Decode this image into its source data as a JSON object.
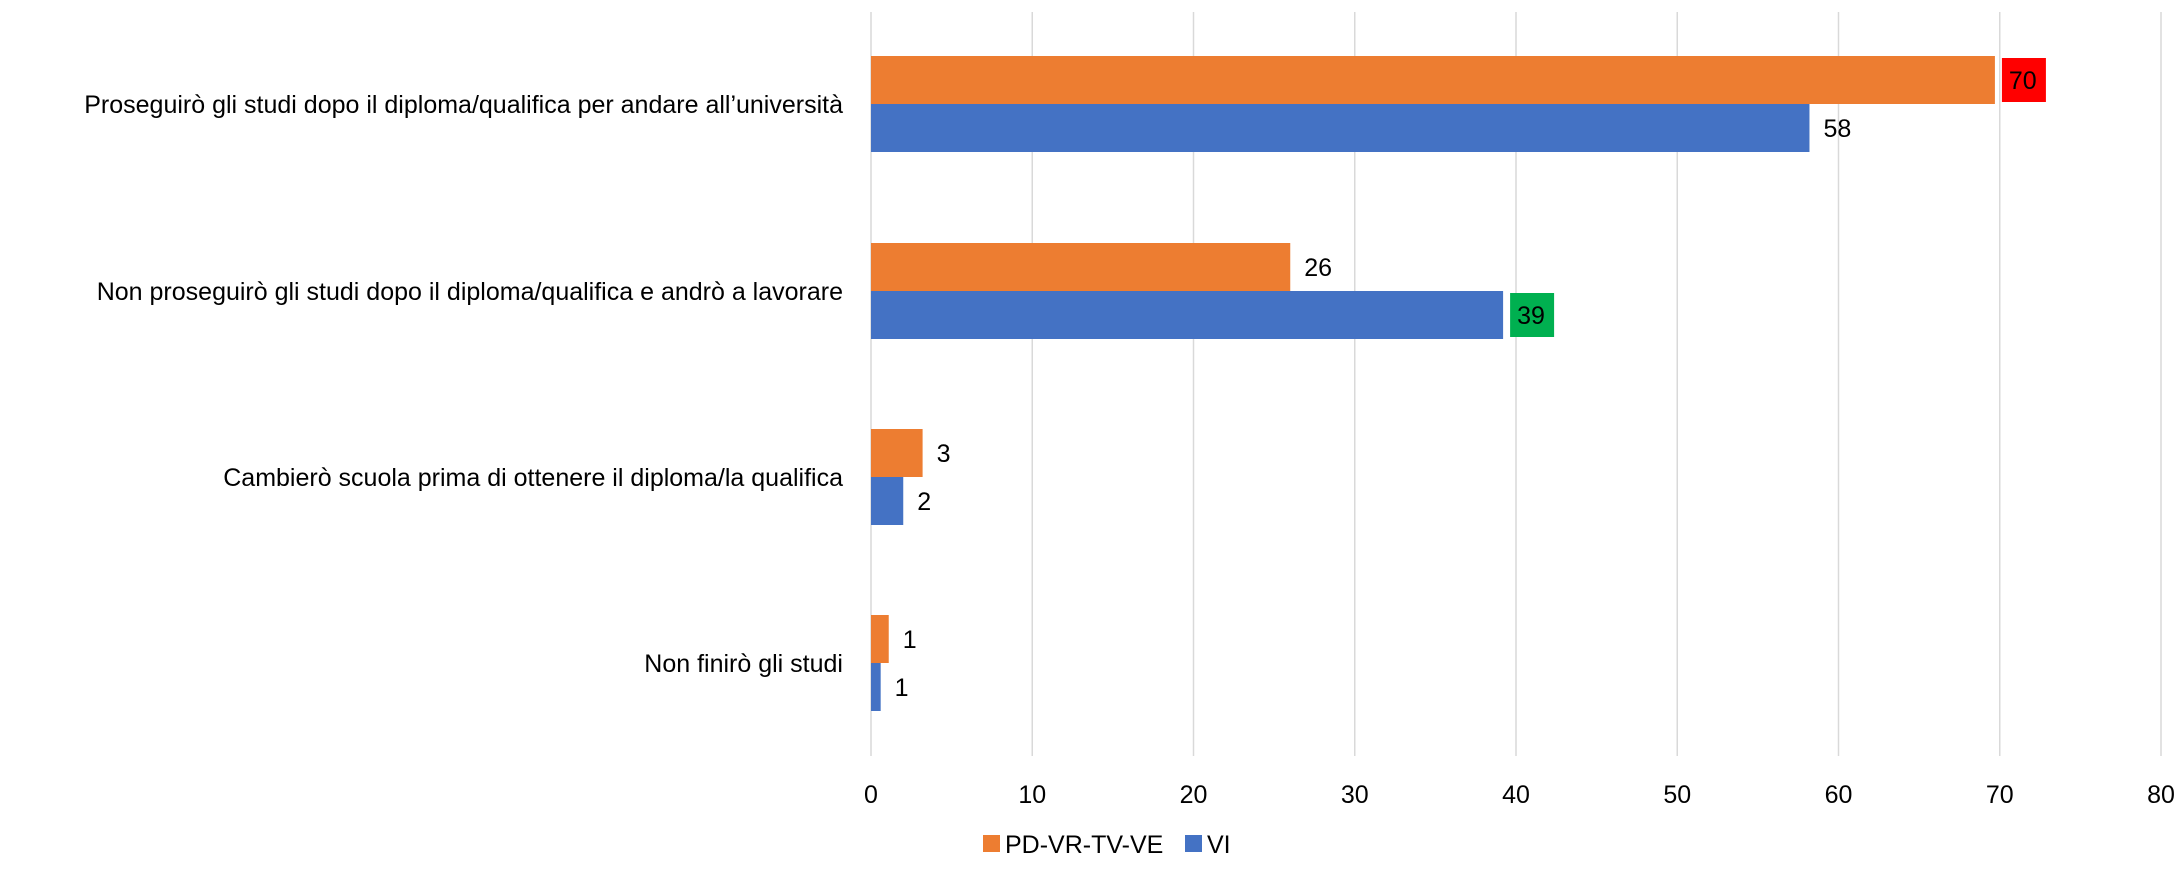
{
  "chart_data": {
    "type": "bar",
    "orientation": "horizontal",
    "categories": [
      "Proseguirò gli studi dopo il diploma/qualifica per andare all’università",
      "Non proseguirò gli studi dopo il diploma/qualifica e andrò a lavorare",
      "Cambierò scuola prima di ottenere il diploma/la qualifica",
      "Non finirò gli studi"
    ],
    "series": [
      {
        "name": "PD-VR-TV-VE",
        "color": "#ED7D31",
        "values": [
          69.7,
          26,
          3.2,
          1.1
        ],
        "labels": [
          "70",
          "26",
          "3",
          "1"
        ],
        "label_highlights": [
          "#FF0000",
          null,
          null,
          null
        ]
      },
      {
        "name": "VI",
        "color": "#4472C4",
        "values": [
          58.2,
          39.2,
          2,
          0.6
        ],
        "labels": [
          "58",
          "39",
          "2",
          "1"
        ],
        "label_highlights": [
          null,
          "#00B050",
          null,
          null
        ]
      }
    ],
    "x_ticks": [
      "0",
      "10",
      "20",
      "30",
      "40",
      "50",
      "60",
      "70",
      "80"
    ],
    "xlim": [
      0,
      80
    ],
    "title": "",
    "xlabel": "",
    "ylabel": "",
    "grid": "vertical",
    "legend_position": "bottom-center",
    "gridline_color": "#D9D9D9"
  }
}
